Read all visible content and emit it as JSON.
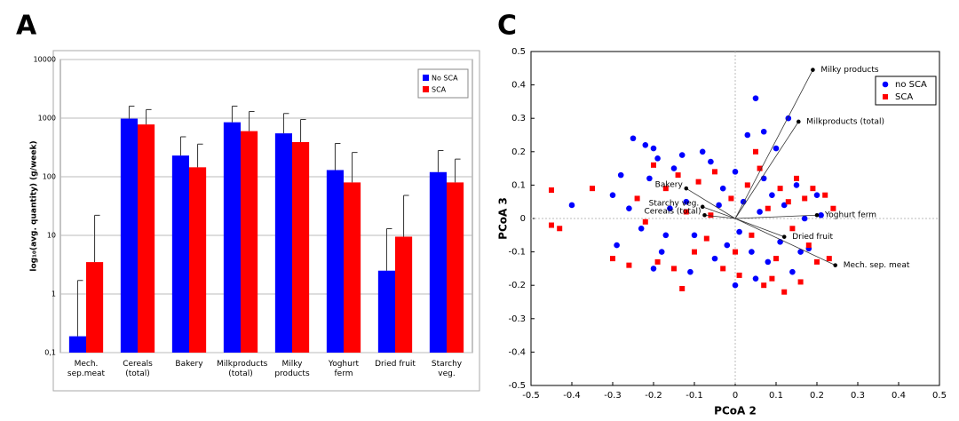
{
  "chart_data": [
    {
      "type": "bar",
      "panel_label": "A",
      "y_label": "log₁₀(avg. quantity) (g/week)",
      "categories": [
        "Mech. sep.meat",
        "Cereals (total)",
        "Bakery",
        "Milkproducts (total)",
        "Milky products",
        "Yoghurt ferm",
        "Dried fruit",
        "Starchy veg."
      ],
      "series": [
        {
          "name": "No SCA",
          "color": "#0000ff",
          "values": [
            0.19,
            980,
            230,
            850,
            550,
            130,
            2.5,
            120
          ],
          "errors": [
            1.51,
            620,
            250,
            750,
            650,
            240,
            10.5,
            160
          ]
        },
        {
          "name": "SCA",
          "color": "#ff0000",
          "values": [
            3.5,
            780,
            145,
            600,
            390,
            80,
            9.5,
            80
          ],
          "errors": [
            18.5,
            620,
            215,
            700,
            560,
            180,
            38.5,
            120
          ]
        }
      ],
      "log_scale": true,
      "ylim": [
        0.1,
        10000
      ],
      "yticks": [
        {
          "value": 0.1,
          "label": "0,1"
        },
        1,
        10,
        100,
        1000,
        10000
      ],
      "grid": true,
      "legend": "top-right"
    },
    {
      "type": "scatter",
      "panel_label": "C",
      "x_label": "PCoA 2",
      "y_label": "PCoA 3",
      "xlim": [
        -0.5,
        0.5
      ],
      "ylim": [
        -0.5,
        0.5
      ],
      "xticks": [
        -0.5,
        -0.4,
        -0.3,
        -0.2,
        -0.1,
        0,
        0.1,
        0.2,
        0.3,
        0.4,
        0.5
      ],
      "yticks": [
        -0.5,
        -0.4,
        -0.3,
        -0.2,
        -0.1,
        0,
        0.1,
        0.2,
        0.3,
        0.4,
        0.5
      ],
      "legend": "top-right",
      "series": [
        {
          "name": "no SCA",
          "color": "#0000ff",
          "marker": "circle",
          "x": [
            -0.4,
            -0.3,
            -0.29,
            -0.28,
            -0.25,
            -0.22,
            -0.2,
            -0.19,
            -0.21,
            -0.23,
            -0.2,
            -0.18,
            -0.16,
            -0.15,
            -0.13,
            -0.12,
            -0.1,
            -0.08,
            -0.06,
            -0.05,
            -0.03,
            -0.02,
            0,
            0.01,
            0.02,
            0.03,
            0.04,
            0.05,
            0.06,
            0.07,
            0.08,
            0.09,
            0.1,
            0.11,
            0.12,
            0.13,
            0.14,
            0.15,
            0.17,
            0.18,
            0.2,
            0.21,
            -0.26,
            -0.11,
            0,
            0.07,
            -0.04,
            0.05,
            -0.17,
            0.16
          ],
          "values": [
            0.04,
            0.07,
            -0.08,
            0.13,
            0.24,
            0.22,
            0.21,
            0.18,
            0.12,
            -0.03,
            -0.15,
            -0.1,
            0.03,
            0.15,
            0.19,
            0.05,
            -0.05,
            0.2,
            0.17,
            -0.12,
            0.09,
            -0.08,
            0.14,
            -0.04,
            0.05,
            0.25,
            -0.1,
            0.36,
            0.02,
            0.26,
            -0.13,
            0.07,
            0.21,
            -0.07,
            0.04,
            0.3,
            -0.16,
            0.1,
            0,
            -0.09,
            0.07,
            0.01,
            0.03,
            -0.16,
            -0.2,
            0.12,
            0.04,
            -0.18,
            -0.05,
            -0.1
          ]
        },
        {
          "name": "SCA",
          "color": "#ff0000",
          "marker": "square",
          "x": [
            -0.45,
            -0.45,
            -0.43,
            -0.35,
            -0.3,
            -0.26,
            -0.24,
            -0.22,
            -0.2,
            -0.19,
            -0.17,
            -0.15,
            -0.14,
            -0.12,
            -0.1,
            -0.09,
            -0.07,
            -0.05,
            -0.03,
            -0.01,
            0.01,
            0.03,
            0.04,
            0.06,
            0.07,
            0.08,
            0.1,
            0.11,
            0.12,
            0.13,
            0.14,
            0.15,
            0.16,
            0.17,
            0.18,
            0.19,
            0.2,
            0.22,
            0.23,
            0.24,
            0.05,
            -0.13,
            0.09,
            -0.06,
            0
          ],
          "values": [
            0.085,
            -0.02,
            -0.03,
            0.09,
            -0.12,
            -0.14,
            0.06,
            -0.01,
            0.16,
            -0.13,
            0.09,
            -0.15,
            0.13,
            0.02,
            -0.1,
            0.11,
            -0.06,
            0.14,
            -0.15,
            0.06,
            -0.17,
            0.1,
            -0.05,
            0.15,
            -0.2,
            0.03,
            -0.12,
            0.09,
            -0.22,
            0.05,
            -0.03,
            0.12,
            -0.19,
            0.06,
            -0.08,
            0.09,
            -0.13,
            0.07,
            -0.12,
            0.03,
            0.2,
            -0.21,
            -0.18,
            0.01,
            -0.1
          ]
        }
      ],
      "annotations": [
        {
          "text": "Milky products",
          "x": 0.19,
          "y": 0.445
        },
        {
          "text": "Milkproducts (total)",
          "x": 0.155,
          "y": 0.29
        },
        {
          "text": "Yoghurt ferm",
          "x": 0.2,
          "y": 0.01
        },
        {
          "text": "Dried fruit",
          "x": 0.12,
          "y": -0.055
        },
        {
          "text": "Mech. sep. meat",
          "x": 0.245,
          "y": -0.14
        },
        {
          "text": "Bakery",
          "x": -0.12,
          "y": 0.09
        },
        {
          "text": "Starchy veg.",
          "x": -0.08,
          "y": 0.035
        },
        {
          "text": "Cereals (total)",
          "x": -0.075,
          "y": 0.01
        }
      ]
    }
  ]
}
